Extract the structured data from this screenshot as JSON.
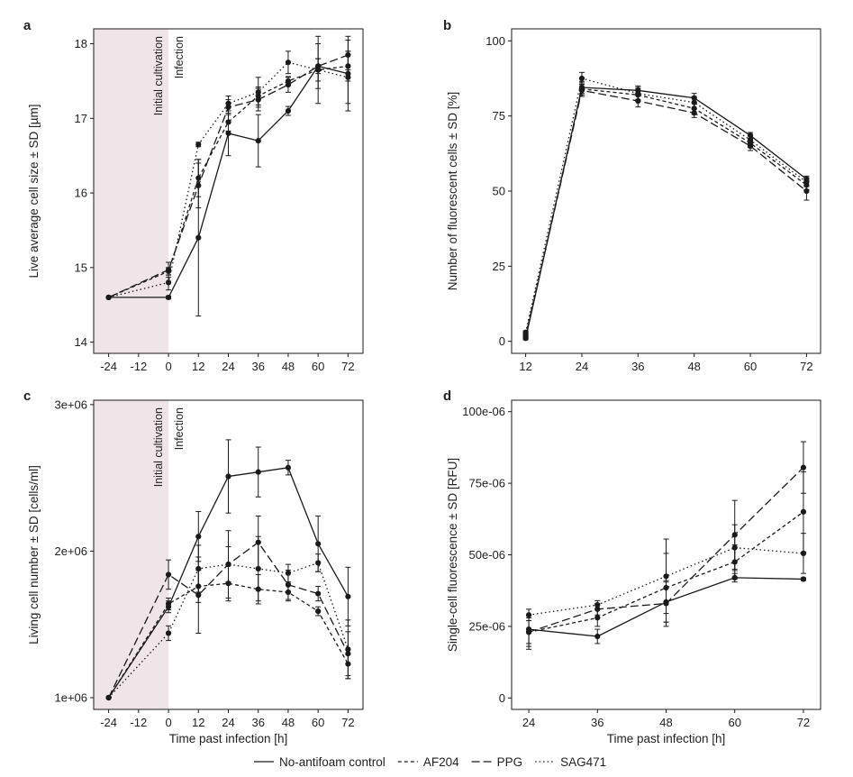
{
  "colors": {
    "line": "#1a1a1a",
    "shade": "#efe5e8",
    "frame": "#1a1a1a"
  },
  "legend": {
    "placement": "bottom",
    "entries": [
      {
        "label": "No-antifoam control",
        "dash": "solid"
      },
      {
        "label": "AF204",
        "dash": "dash"
      },
      {
        "label": "PPG",
        "dash": "longdash"
      },
      {
        "label": "SAG471",
        "dash": "dotted"
      }
    ]
  },
  "chart_data": [
    {
      "panel": "a",
      "type": "line",
      "xlabel": "",
      "ylabel": "Live average cell size ± SD [µm]",
      "x_ticks": [
        "-24",
        "-12",
        "0",
        "12",
        "24",
        "36",
        "48",
        "60",
        "72"
      ],
      "y_ticks": [
        "14",
        "15",
        "16",
        "17",
        "18"
      ],
      "xlim": [
        -30,
        78
      ],
      "ylim": [
        13.85,
        18.2
      ],
      "shade_x": [
        -30,
        0
      ],
      "annotations": [
        "Initial cultivation",
        "Infection"
      ],
      "x": [
        -24,
        0,
        12,
        24,
        36,
        48,
        60,
        72
      ],
      "series": [
        {
          "label": "No-antifoam control",
          "dash": "solid",
          "values": [
            14.6,
            14.6,
            15.4,
            16.8,
            16.7,
            17.1,
            17.7,
            17.6
          ],
          "sd": [
            0,
            0.02,
            1.05,
            0.3,
            0.35,
            0.06,
            0.3,
            0.5
          ]
        },
        {
          "label": "AF204",
          "dash": "dash",
          "values": [
            14.6,
            14.95,
            16.2,
            16.95,
            17.3,
            17.5,
            17.65,
            17.7
          ],
          "sd": [
            0,
            0.05,
            0.25,
            0.12,
            0.12,
            0.06,
            0.15,
            0.2
          ]
        },
        {
          "label": "PPG",
          "dash": "longdash",
          "values": [
            14.6,
            14.97,
            16.1,
            17.15,
            17.25,
            17.45,
            17.7,
            17.85
          ],
          "sd": [
            0,
            0.1,
            0.3,
            0.1,
            0.15,
            0.1,
            0.1,
            0.2
          ]
        },
        {
          "label": "SAG471",
          "dash": "dotted",
          "values": [
            14.6,
            14.8,
            16.65,
            17.2,
            17.35,
            17.75,
            17.65,
            17.55
          ],
          "sd": [
            0,
            0.1,
            0.03,
            0.1,
            0.2,
            0.15,
            0.45,
            0.35
          ]
        }
      ]
    },
    {
      "panel": "b",
      "type": "line",
      "xlabel": "",
      "ylabel": "Number of fluorescent cells ± SD [%]",
      "x_ticks": [
        "12",
        "24",
        "36",
        "48",
        "60",
        "72"
      ],
      "y_ticks": [
        "0",
        "25",
        "50",
        "75",
        "100"
      ],
      "xlim": [
        9,
        75
      ],
      "ylim": [
        -4,
        104
      ],
      "x": [
        12,
        24,
        36,
        48,
        60,
        72
      ],
      "series": [
        {
          "label": "No-antifoam control",
          "dash": "solid",
          "values": [
            1,
            84.5,
            83.5,
            81,
            68.5,
            54
          ],
          "sd": [
            0.5,
            2,
            1.5,
            1.5,
            1,
            1
          ]
        },
        {
          "label": "AF204",
          "dash": "dash",
          "values": [
            2,
            84,
            82,
            77.5,
            66,
            52
          ],
          "sd": [
            0.5,
            2,
            2,
            2,
            1.5,
            1.5
          ]
        },
        {
          "label": "PPG",
          "dash": "longdash",
          "values": [
            1.5,
            83.5,
            80,
            76,
            65,
            50
          ],
          "sd": [
            0.5,
            2,
            2,
            1.5,
            1.5,
            3
          ]
        },
        {
          "label": "SAG471",
          "dash": "dotted",
          "values": [
            3,
            87.5,
            82.5,
            79.5,
            67,
            53
          ],
          "sd": [
            0.5,
            2,
            2,
            2,
            1.5,
            1.5
          ]
        }
      ]
    },
    {
      "panel": "c",
      "type": "line",
      "xlabel": "Time past infection [h]",
      "ylabel": "Living cell number ± SD [cells/ml]",
      "x_ticks": [
        "-24",
        "-12",
        "0",
        "12",
        "24",
        "36",
        "48",
        "60",
        "72"
      ],
      "y_ticks": [
        "1e+06",
        "2e+06",
        "3e+06"
      ],
      "y_tick_values": [
        1000000,
        2000000,
        3000000
      ],
      "xlim": [
        -30,
        78
      ],
      "ylim": [
        920000,
        3030000
      ],
      "shade_x": [
        -30,
        0
      ],
      "annotations": [
        "Initial cultivation",
        "Infection"
      ],
      "x": [
        -24,
        0,
        12,
        24,
        36,
        48,
        60,
        72
      ],
      "series": [
        {
          "label": "No-antifoam control",
          "dash": "solid",
          "values": [
            1000000,
            1620000,
            2100000,
            2510000,
            2540000,
            2570000,
            2050000,
            1690000
          ],
          "sd": [
            0,
            40000,
            170000,
            250000,
            170000,
            50000,
            190000,
            200000
          ]
        },
        {
          "label": "AF204",
          "dash": "dash",
          "values": [
            1000000,
            1640000,
            1760000,
            1780000,
            1740000,
            1720000,
            1590000,
            1230000
          ],
          "sd": [
            0,
            40000,
            110000,
            120000,
            100000,
            60000,
            30000,
            100000
          ]
        },
        {
          "label": "PPG",
          "dash": "longdash",
          "values": [
            1000000,
            1840000,
            1700000,
            1910000,
            2060000,
            1770000,
            1710000,
            1300000
          ],
          "sd": [
            0,
            100000,
            260000,
            120000,
            180000,
            100000,
            50000,
            150000
          ]
        },
        {
          "label": "SAG471",
          "dash": "dotted",
          "values": [
            1000000,
            1440000,
            1880000,
            1910000,
            1880000,
            1850000,
            1920000,
            1330000
          ],
          "sd": [
            0,
            50000,
            160000,
            230000,
            220000,
            60000,
            60000,
            200000
          ]
        }
      ]
    },
    {
      "panel": "d",
      "type": "line",
      "xlabel": "Time past infection [h]",
      "ylabel": "Single-cell fluorescence ± SD [RFU]",
      "x_ticks": [
        "24",
        "36",
        "48",
        "60",
        "72"
      ],
      "y_ticks": [
        "0",
        "25e-06",
        "50e-06",
        "75e-06",
        "100e-06"
      ],
      "y_tick_values": [
        0,
        25,
        50,
        75,
        100
      ],
      "xlim": [
        21,
        75
      ],
      "ylim": [
        -4,
        104
      ],
      "x": [
        24,
        36,
        48,
        60,
        72
      ],
      "series": [
        {
          "label": "No-antifoam control",
          "dash": "solid",
          "values": [
            24,
            21.5,
            33.5,
            42,
            41.5
          ],
          "sd": [
            5,
            2.5,
            7,
            1.5,
            0.5
          ]
        },
        {
          "label": "AF204",
          "dash": "dash",
          "values": [
            23,
            28,
            38.5,
            47.5,
            65
          ],
          "sd": [
            5,
            3,
            12,
            6,
            14
          ]
        },
        {
          "label": "PPG",
          "dash": "longdash",
          "values": [
            23,
            31,
            33,
            57,
            80.5
          ],
          "sd": [
            6,
            2,
            8,
            12,
            9
          ]
        },
        {
          "label": "SAG471",
          "dash": "dotted",
          "values": [
            29,
            32.5,
            42.5,
            52.5,
            50.5
          ],
          "sd": [
            2,
            1.5,
            13,
            8,
            7
          ]
        }
      ]
    }
  ]
}
